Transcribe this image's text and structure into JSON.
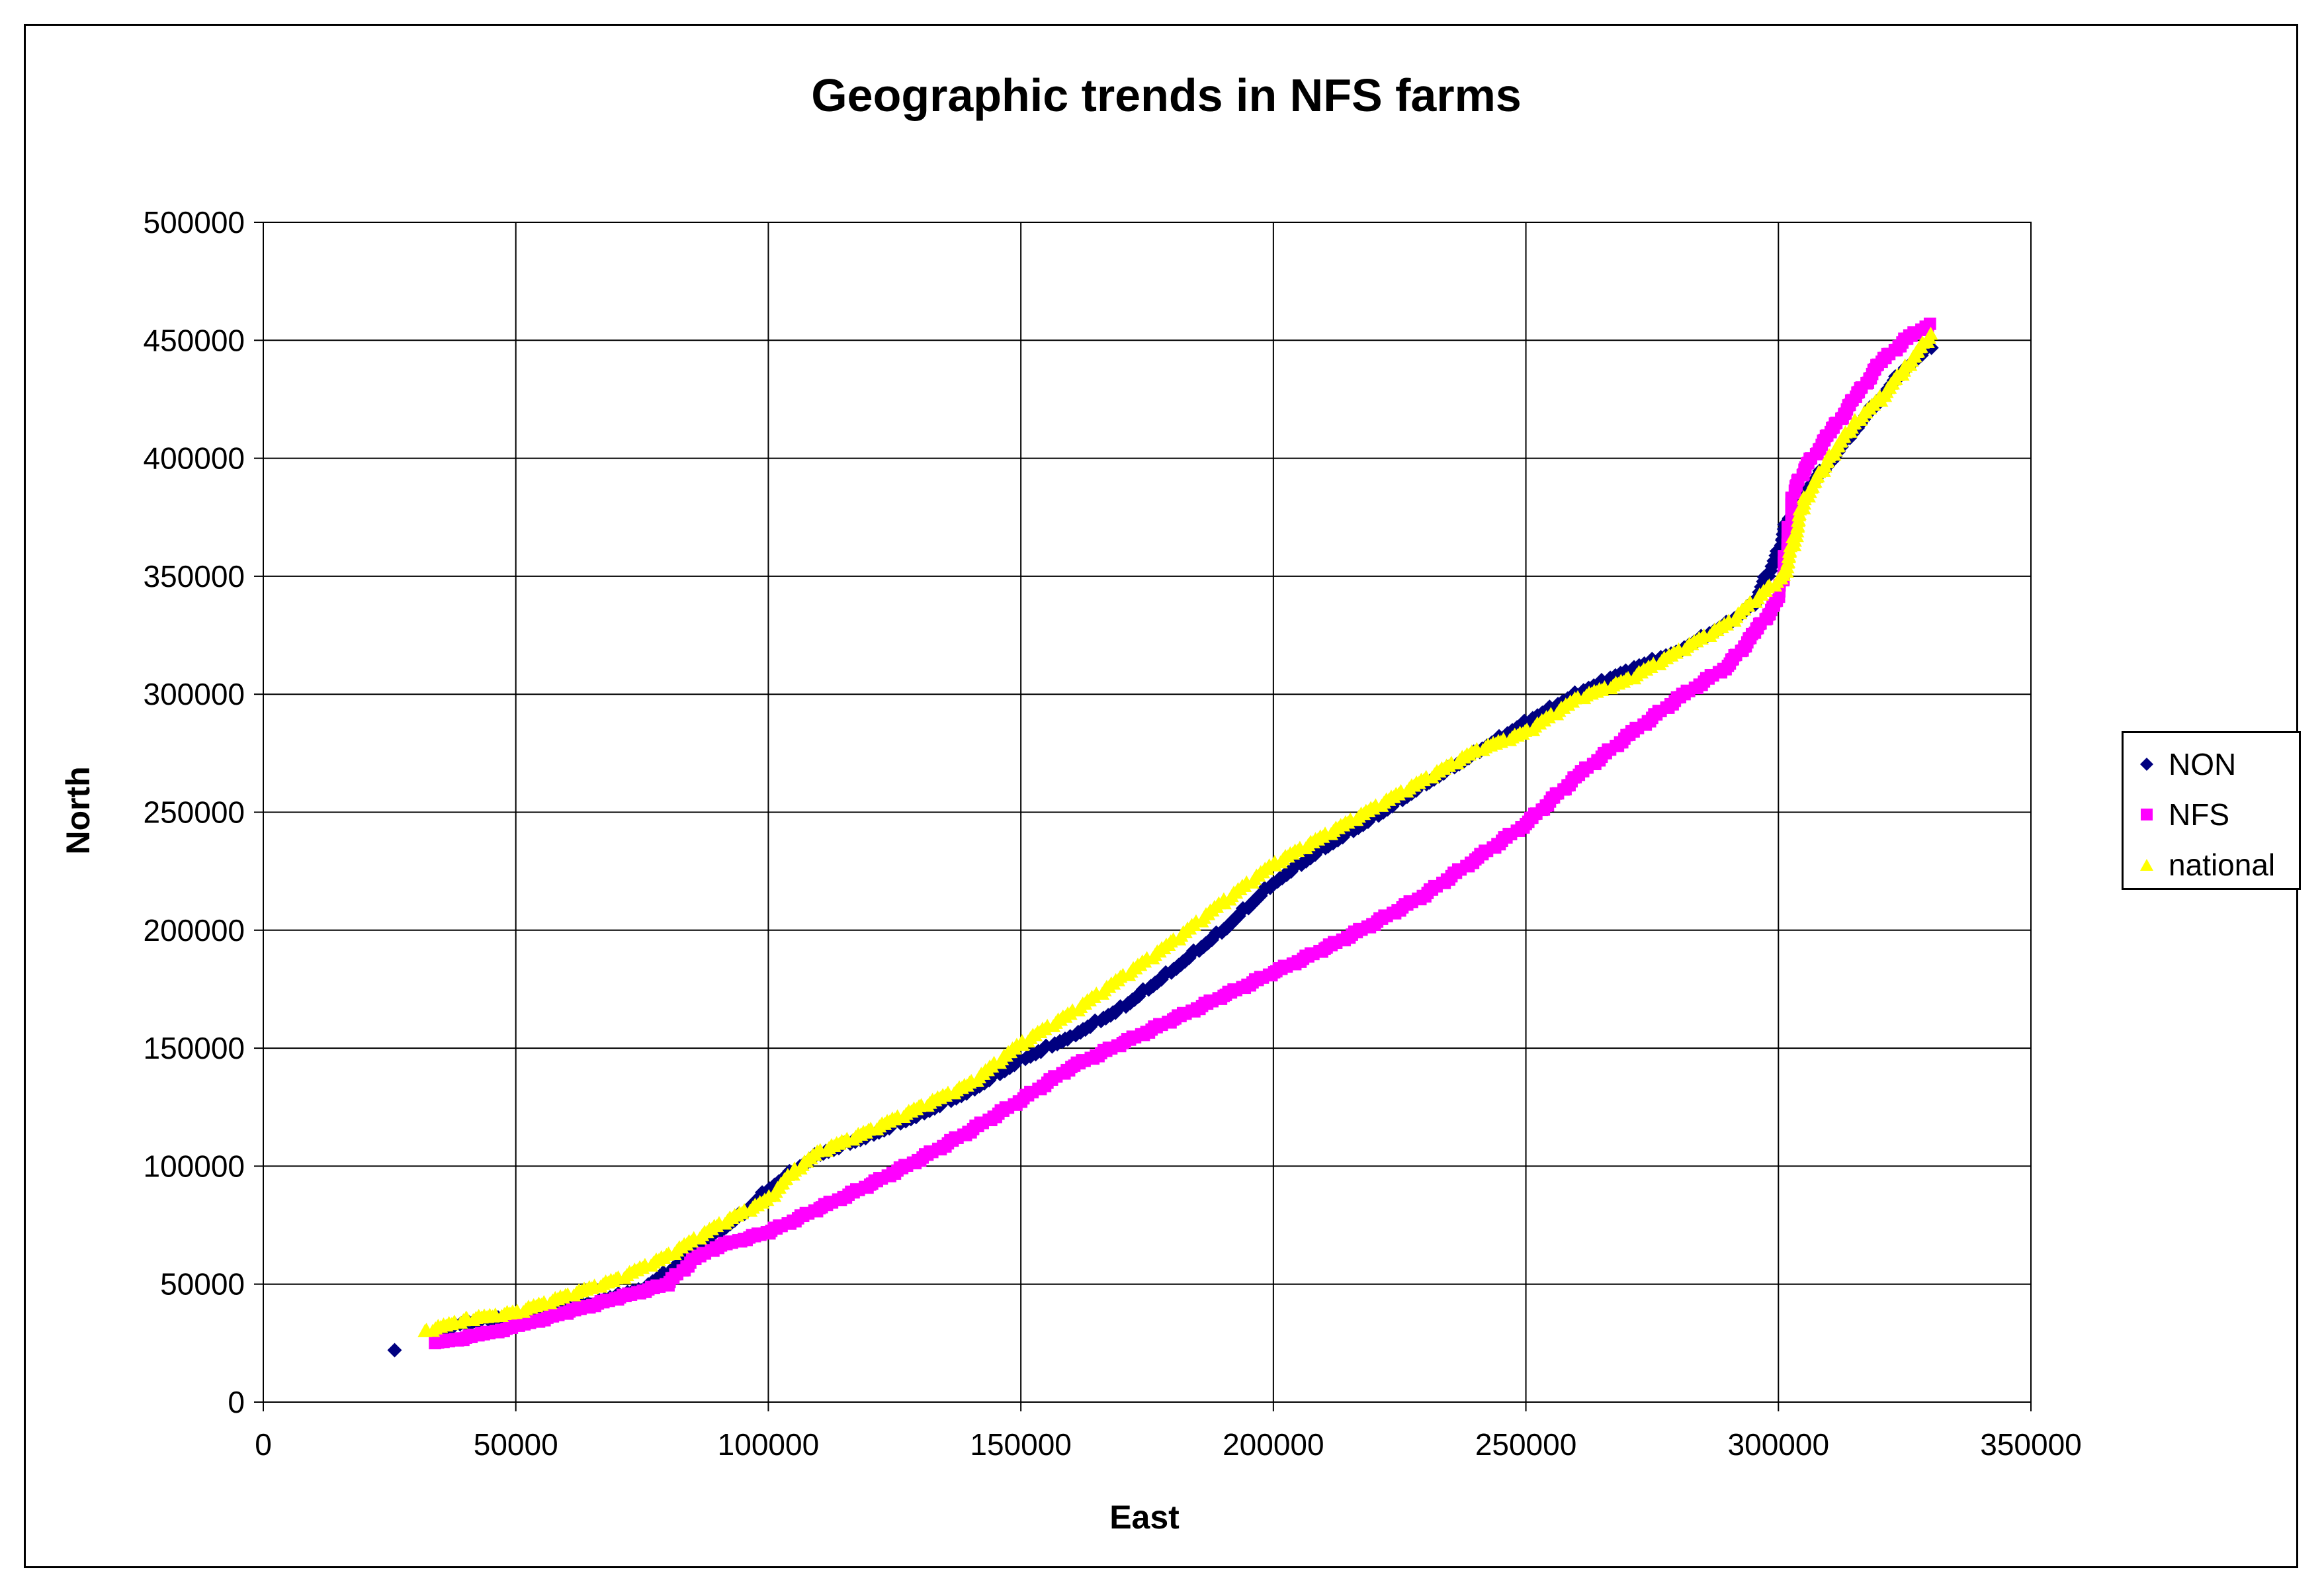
{
  "chart_data": {
    "type": "scatter",
    "title": "Geographic trends in NFS farms",
    "xlabel": "East",
    "ylabel": "North",
    "xlim": [
      0,
      350000
    ],
    "ylim": [
      0,
      500000
    ],
    "x_ticks": [
      "0",
      "50000",
      "100000",
      "150000",
      "200000",
      "250000",
      "300000",
      "350000"
    ],
    "y_ticks": [
      "0",
      "50000",
      "100000",
      "150000",
      "200000",
      "250000",
      "300000",
      "350000",
      "400000",
      "450000",
      "500000"
    ],
    "grid": true,
    "legend_position": "right",
    "series": [
      {
        "name": "NON",
        "color": "#000080",
        "marker": "diamond",
        "points": [
          [
            26000,
            22000
          ],
          [
            35000,
            28000
          ],
          [
            38000,
            33000
          ],
          [
            45000,
            35000
          ],
          [
            55000,
            38000
          ],
          [
            65000,
            42000
          ],
          [
            75000,
            48000
          ],
          [
            80000,
            55000
          ],
          [
            85000,
            63000
          ],
          [
            90000,
            72000
          ],
          [
            95000,
            80000
          ],
          [
            100000,
            90000
          ],
          [
            105000,
            98000
          ],
          [
            110000,
            105000
          ],
          [
            120000,
            113000
          ],
          [
            130000,
            122000
          ],
          [
            140000,
            132000
          ],
          [
            150000,
            145000
          ],
          [
            160000,
            155000
          ],
          [
            170000,
            167000
          ],
          [
            180000,
            183000
          ],
          [
            190000,
            200000
          ],
          [
            200000,
            220000
          ],
          [
            210000,
            235000
          ],
          [
            220000,
            248000
          ],
          [
            230000,
            262000
          ],
          [
            240000,
            275000
          ],
          [
            250000,
            288000
          ],
          [
            260000,
            300000
          ],
          [
            270000,
            310000
          ],
          [
            280000,
            318000
          ],
          [
            290000,
            330000
          ],
          [
            295000,
            338000
          ],
          [
            300000,
            360000
          ],
          [
            302000,
            375000
          ],
          [
            305000,
            385000
          ],
          [
            310000,
            398000
          ],
          [
            315000,
            412000
          ],
          [
            320000,
            425000
          ],
          [
            325000,
            438000
          ],
          [
            330000,
            447000
          ]
        ]
      },
      {
        "name": "NFS",
        "color": "#ff00ff",
        "marker": "square",
        "points": [
          [
            34000,
            25000
          ],
          [
            42000,
            28000
          ],
          [
            50000,
            32000
          ],
          [
            60000,
            38000
          ],
          [
            70000,
            44000
          ],
          [
            80000,
            50000
          ],
          [
            85000,
            60000
          ],
          [
            90000,
            66000
          ],
          [
            100000,
            72000
          ],
          [
            110000,
            82000
          ],
          [
            120000,
            92000
          ],
          [
            130000,
            103000
          ],
          [
            140000,
            115000
          ],
          [
            150000,
            128000
          ],
          [
            160000,
            142000
          ],
          [
            170000,
            152000
          ],
          [
            180000,
            162000
          ],
          [
            190000,
            172000
          ],
          [
            200000,
            182000
          ],
          [
            210000,
            192000
          ],
          [
            220000,
            203000
          ],
          [
            230000,
            215000
          ],
          [
            240000,
            230000
          ],
          [
            250000,
            245000
          ],
          [
            260000,
            265000
          ],
          [
            270000,
            282000
          ],
          [
            280000,
            298000
          ],
          [
            290000,
            312000
          ],
          [
            295000,
            325000
          ],
          [
            300000,
            340000
          ],
          [
            301000,
            352000
          ],
          [
            303000,
            385000
          ],
          [
            305000,
            395000
          ],
          [
            310000,
            410000
          ],
          [
            315000,
            425000
          ],
          [
            320000,
            440000
          ],
          [
            325000,
            450000
          ],
          [
            330000,
            457000
          ]
        ]
      },
      {
        "name": "national",
        "color": "#ffff00",
        "marker": "triangle",
        "points": [
          [
            32000,
            30000
          ],
          [
            40000,
            35000
          ],
          [
            50000,
            38000
          ],
          [
            60000,
            45000
          ],
          [
            70000,
            52000
          ],
          [
            80000,
            62000
          ],
          [
            90000,
            75000
          ],
          [
            100000,
            86000
          ],
          [
            105000,
            98000
          ],
          [
            110000,
            106000
          ],
          [
            120000,
            115000
          ],
          [
            130000,
            125000
          ],
          [
            140000,
            135000
          ],
          [
            150000,
            152000
          ],
          [
            160000,
            165000
          ],
          [
            170000,
            180000
          ],
          [
            180000,
            195000
          ],
          [
            190000,
            212000
          ],
          [
            200000,
            228000
          ],
          [
            210000,
            240000
          ],
          [
            220000,
            252000
          ],
          [
            230000,
            264000
          ],
          [
            240000,
            276000
          ],
          [
            250000,
            284000
          ],
          [
            260000,
            298000
          ],
          [
            270000,
            306000
          ],
          [
            280000,
            318000
          ],
          [
            290000,
            330000
          ],
          [
            298000,
            345000
          ],
          [
            301000,
            350000
          ],
          [
            303000,
            365000
          ],
          [
            305000,
            382000
          ],
          [
            310000,
            400000
          ],
          [
            315000,
            415000
          ],
          [
            320000,
            425000
          ],
          [
            325000,
            438000
          ],
          [
            330000,
            452000
          ]
        ]
      }
    ]
  }
}
